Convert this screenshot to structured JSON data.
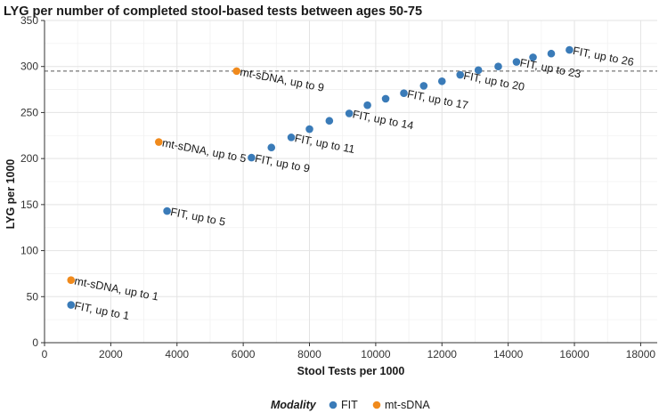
{
  "chart_data": {
    "type": "scatter",
    "title": "LYG per number of completed stool-based tests between ages 50-75",
    "xlabel": "Stool Tests per 1000",
    "ylabel": "LYG per 1000",
    "xlim": [
      0,
      18500
    ],
    "ylim": [
      0,
      350
    ],
    "xticks": [
      0,
      2000,
      4000,
      6000,
      8000,
      10000,
      12000,
      14000,
      16000,
      18000
    ],
    "yticks": [
      0,
      50,
      100,
      150,
      200,
      250,
      300,
      350
    ],
    "reference_line_y": 295,
    "legend": {
      "title": "Modality",
      "position": "bottom",
      "entries": [
        {
          "name": "FIT",
          "color": "#3a7bb8"
        },
        {
          "name": "mt-sDNA",
          "color": "#f08a1c"
        }
      ]
    },
    "series": [
      {
        "name": "FIT",
        "color": "#3a7bb8",
        "points": [
          {
            "x": 800,
            "y": 41,
            "label": "FIT, up to 1"
          },
          {
            "x": 3700,
            "y": 143,
            "label": "FIT, up to 5"
          },
          {
            "x": 6250,
            "y": 201,
            "label": "FIT, up to 9"
          },
          {
            "x": 6850,
            "y": 212,
            "label": ""
          },
          {
            "x": 7450,
            "y": 223,
            "label": "FIT, up to 11"
          },
          {
            "x": 8000,
            "y": 232,
            "label": ""
          },
          {
            "x": 8600,
            "y": 241,
            "label": ""
          },
          {
            "x": 9200,
            "y": 249,
            "label": "FIT, up to 14"
          },
          {
            "x": 9750,
            "y": 258,
            "label": ""
          },
          {
            "x": 10300,
            "y": 265,
            "label": ""
          },
          {
            "x": 10850,
            "y": 271,
            "label": "FIT, up to 17"
          },
          {
            "x": 11450,
            "y": 279,
            "label": ""
          },
          {
            "x": 12000,
            "y": 284,
            "label": ""
          },
          {
            "x": 12550,
            "y": 291,
            "label": "FIT, up to 20"
          },
          {
            "x": 13100,
            "y": 296,
            "label": ""
          },
          {
            "x": 13700,
            "y": 300,
            "label": ""
          },
          {
            "x": 14250,
            "y": 305,
            "label": "FIT, up to 23"
          },
          {
            "x": 14750,
            "y": 310,
            "label": ""
          },
          {
            "x": 15300,
            "y": 314,
            "label": ""
          },
          {
            "x": 15850,
            "y": 318,
            "label": "FIT, up to 26"
          }
        ]
      },
      {
        "name": "mt-sDNA",
        "color": "#f08a1c",
        "points": [
          {
            "x": 800,
            "y": 68,
            "label": "mt-sDNA, up to 1"
          },
          {
            "x": 3450,
            "y": 218,
            "label": "mt-sDNA, up to 5"
          },
          {
            "x": 5800,
            "y": 295,
            "label": "mt-sDNA, up to 9"
          }
        ]
      }
    ]
  }
}
